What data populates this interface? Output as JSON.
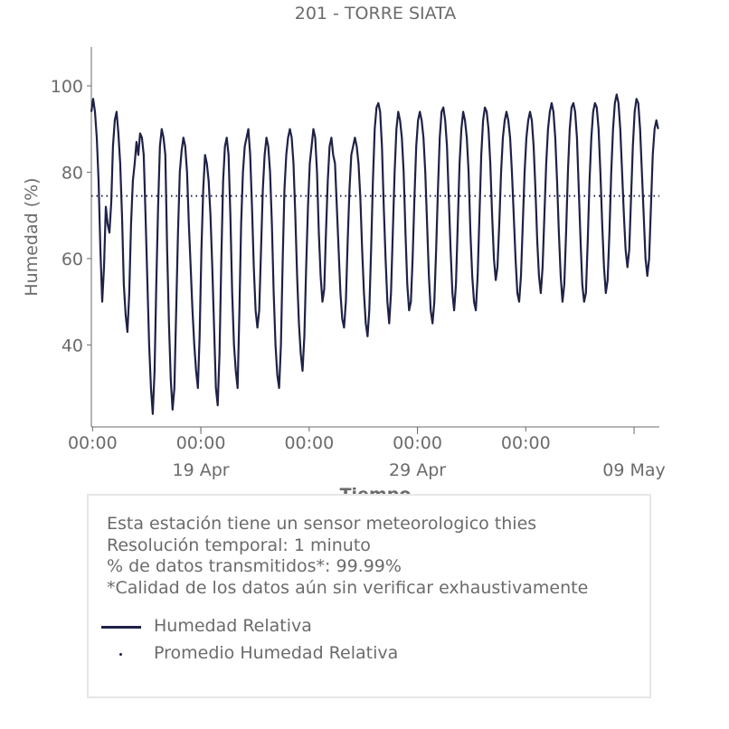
{
  "chart_data": {
    "type": "line",
    "title": "201 - TORRE SIATA",
    "xlabel": "Tiempo",
    "ylabel": "Humedad (%)",
    "ylim": [
      21,
      109
    ],
    "yticks": [
      40,
      60,
      80,
      100
    ],
    "x_range": [
      "2023-04-13T22:40",
      "2023-05-10T04:00"
    ],
    "xtick_time_labels": [
      "00:00",
      "00:00",
      "00:00",
      "00:00",
      "00:00"
    ],
    "xtick_date_labels": [
      "19 Apr",
      "29 Apr",
      "09 May"
    ],
    "grid": false,
    "series": [
      {
        "name": "Humedad Relativa",
        "color": "#1f2147",
        "style": "solid",
        "x_start": "2023-04-13T22:40",
        "x_step_hours": 2,
        "values": [
          94,
          97,
          94,
          88,
          78,
          62,
          50,
          58,
          72,
          68,
          66,
          73,
          86,
          92,
          94,
          89,
          82,
          70,
          54,
          47,
          43,
          52,
          68,
          78,
          82,
          87,
          84,
          89,
          88,
          84,
          70,
          55,
          40,
          30,
          24,
          34,
          54,
          72,
          86,
          90,
          88,
          84,
          62,
          45,
          32,
          25,
          30,
          48,
          66,
          80,
          85,
          88,
          86,
          80,
          68,
          58,
          48,
          40,
          34,
          30,
          42,
          62,
          76,
          84,
          82,
          78,
          70,
          58,
          44,
          30,
          26,
          38,
          60,
          78,
          86,
          88,
          84,
          70,
          52,
          40,
          34,
          30,
          48,
          68,
          80,
          86,
          88,
          90,
          84,
          72,
          58,
          48,
          44,
          48,
          62,
          76,
          84,
          88,
          86,
          80,
          68,
          52,
          40,
          33,
          30,
          40,
          60,
          76,
          84,
          88,
          90,
          88,
          82,
          70,
          56,
          45,
          38,
          34,
          42,
          58,
          72,
          82,
          86,
          90,
          88,
          80,
          66,
          56,
          50,
          53,
          66,
          78,
          86,
          88,
          84,
          82,
          72,
          62,
          52,
          46,
          44,
          50,
          64,
          76,
          84,
          86,
          88,
          86,
          82,
          74,
          62,
          52,
          45,
          42,
          48,
          62,
          78,
          90,
          95,
          96,
          94,
          86,
          72,
          60,
          50,
          45,
          52,
          66,
          80,
          90,
          94,
          92,
          88,
          80,
          66,
          54,
          48,
          50,
          60,
          74,
          86,
          92,
          94,
          92,
          88,
          80,
          68,
          56,
          48,
          45,
          50,
          62,
          76,
          88,
          94,
          95,
          92,
          86,
          74,
          62,
          52,
          48,
          54,
          68,
          82,
          90,
          94,
          92,
          88,
          80,
          66,
          56,
          50,
          48,
          56,
          70,
          84,
          92,
          95,
          94,
          90,
          82,
          70,
          60,
          55,
          58,
          68,
          80,
          88,
          92,
          94,
          92,
          88,
          80,
          70,
          60,
          52,
          50,
          56,
          68,
          80,
          88,
          92,
          94,
          92,
          86,
          76,
          64,
          56,
          52,
          58,
          70,
          82,
          90,
          94,
          96,
          94,
          88,
          78,
          66,
          56,
          50,
          54,
          66,
          80,
          90,
          95,
          96,
          94,
          88,
          76,
          64,
          54,
          50,
          52,
          64,
          78,
          88,
          94,
          96,
          95,
          90,
          80,
          68,
          58,
          52,
          55,
          66,
          80,
          90,
          96,
          98,
          96,
          90,
          80,
          70,
          62,
          58,
          62,
          74,
          86,
          94,
          97,
          96,
          90,
          80,
          70,
          60,
          56,
          60,
          72,
          84,
          90,
          92,
          90,
          84,
          76,
          66,
          56,
          50,
          44,
          40,
          48,
          62,
          76,
          84,
          86,
          84,
          78,
          66,
          52,
          42,
          36,
          34,
          40,
          52,
          63
        ]
      },
      {
        "name": "Promedio Humedad Relativa",
        "color": "#1f2147",
        "style": "dotted",
        "value": 74.5
      }
    ]
  },
  "info": {
    "line1": "Esta estación tiene un sensor meteorologico thies",
    "line2": "Resolución temporal: 1 minuto",
    "line3": "% de datos transmitidos*: 99.99%",
    "line4": "*Calidad de los datos aún sin verificar exhaustivamente"
  },
  "legend": {
    "item1": "Humedad Relativa",
    "item2": "Promedio Humedad Relativa"
  }
}
